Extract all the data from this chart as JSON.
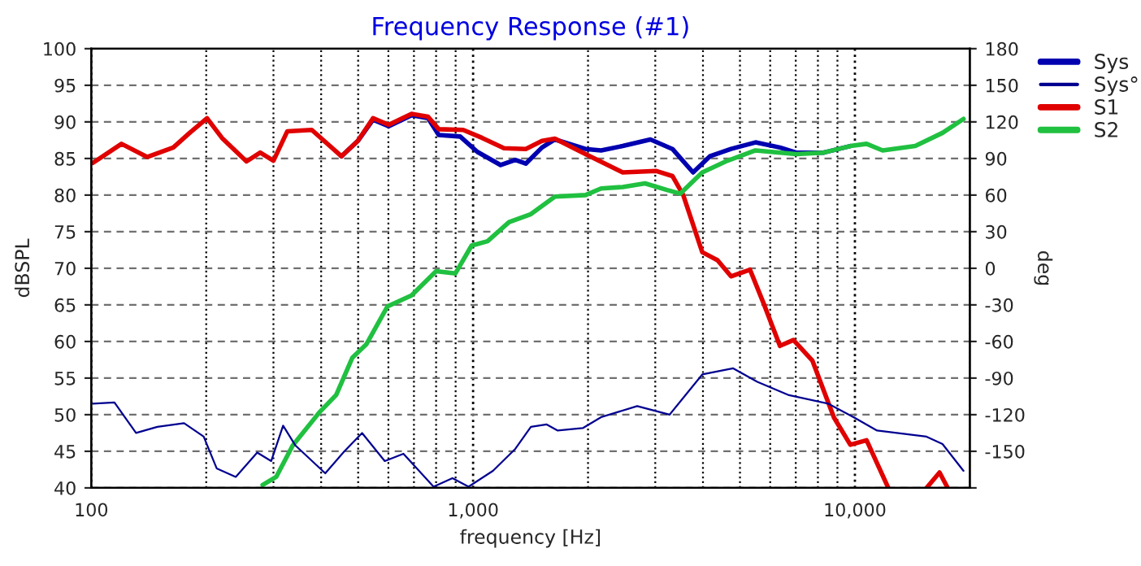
{
  "chart_data": {
    "type": "line",
    "title": "Frequency Response (#1)",
    "xlabel": "frequency [Hz]",
    "ylabel": "dBSPL",
    "y2label": "deg",
    "log": "x",
    "grid": true,
    "legend": "top right",
    "xlim": [
      100,
      20000
    ],
    "xticks": [
      100,
      {
        "value": 1000,
        "label": "1,000"
      },
      {
        "value": 10000,
        "label": "10,000"
      }
    ],
    "ylim": [
      40,
      100
    ],
    "yticks": [
      40,
      45,
      50,
      55,
      60,
      65,
      70,
      75,
      80,
      85,
      90,
      95,
      100
    ],
    "y2lim": [
      -180,
      180
    ],
    "y2ticks": [
      {
        "value": -180,
        "label": null
      },
      -150,
      -120,
      -90,
      -60,
      -30,
      0,
      30,
      60,
      90,
      120,
      150,
      180
    ],
    "series": [
      {
        "name": "Sys",
        "color": "#0000b0",
        "x": [
          452,
          499,
          547,
          601,
          690,
          762,
          813,
          925,
          1026,
          1181,
          1290,
          1374,
          1515,
          1638,
          1970,
          2164,
          2465,
          2914,
          3327,
          3768,
          4170,
          4737,
          5490,
          6362,
          7018,
          8270,
          9728
        ],
        "values": [
          85.3,
          87.4,
          90.3,
          89.4,
          90.9,
          90.5,
          88.2,
          88.0,
          85.9,
          84.1,
          84.8,
          84.3,
          86.5,
          87.6,
          86.3,
          86.1,
          86.7,
          87.6,
          86.3,
          83.1,
          85.3,
          86.3,
          87.2,
          86.5,
          85.8,
          85.8,
          86.7
        ]
      },
      {
        "name": "Sys°",
        "color": "#000090",
        "axis": "y2",
        "x": [
          101,
          115,
          131,
          149,
          175,
          197,
          213,
          239,
          272,
          296,
          318,
          342,
          410,
          460,
          512,
          587,
          657,
          788,
          883,
          973,
          1127,
          1290,
          1417,
          1559,
          1666,
          1937,
          2164,
          2690,
          3270,
          3983,
          4800,
          5550,
          6720,
          8520,
          10050,
          11430,
          15400,
          16960,
          19250
        ],
        "values": [
          -111,
          -110,
          -135,
          -130,
          -127,
          -138,
          -164,
          -171,
          -151,
          -158,
          -129,
          -145,
          -168,
          -150,
          -135,
          -158,
          -152,
          -179,
          -172,
          -179,
          -166,
          -148,
          -130,
          -128,
          -133,
          -131,
          -122,
          -113,
          -120,
          -87,
          -82,
          -93,
          -104,
          -111,
          -123,
          -133,
          -138,
          -144,
          -166
        ]
      },
      {
        "name": "S1",
        "color": "#e00000",
        "x": [
          101,
          120,
          140,
          164,
          181,
          201,
          220,
          255,
          277,
          300,
          326,
          378,
          452,
          499,
          547,
          601,
          690,
          762,
          813,
          942,
          1057,
          1205,
          1374,
          1515,
          1638,
          1970,
          2465,
          3012,
          3327,
          3551,
          3983,
          4367,
          4737,
          5313,
          5767,
          6362,
          6903,
          7735,
          8815,
          9728,
          10730,
          12230,
          13500,
          15400,
          16660,
          17500
        ],
        "values": [
          84.4,
          87.0,
          85.2,
          86.5,
          88.5,
          90.5,
          87.8,
          84.6,
          85.8,
          84.7,
          88.7,
          88.9,
          85.3,
          87.4,
          90.5,
          89.6,
          91.1,
          90.7,
          89.0,
          88.9,
          87.8,
          86.4,
          86.3,
          87.4,
          87.7,
          85.6,
          83.1,
          83.3,
          82.6,
          80.0,
          72.2,
          71.1,
          68.9,
          69.8,
          65.2,
          59.4,
          60.2,
          57.4,
          49.6,
          45.9,
          46.5,
          40.0,
          null,
          40.0,
          42.1,
          40.0
        ]
      },
      {
        "name": "S2",
        "color": "#20c040",
        "x": [
          281,
          305,
          337,
          397,
          438,
          483,
          525,
          597,
          690,
          800,
          899,
          991,
          1091,
          1242,
          1417,
          1638,
          1970,
          2164,
          2465,
          2820,
          3220,
          3490,
          3983,
          4590,
          5490,
          7018,
          8270,
          9728,
          10730,
          11820,
          14390,
          16960,
          19250
        ],
        "values": [
          40.4,
          41.5,
          45.8,
          50.4,
          52.7,
          57.8,
          59.6,
          64.8,
          66.3,
          69.6,
          69.3,
          73.1,
          73.7,
          76.3,
          77.4,
          79.8,
          80.0,
          80.9,
          81.1,
          81.6,
          80.7,
          80.2,
          83.1,
          84.6,
          86.1,
          85.6,
          85.8,
          86.7,
          87.0,
          86.1,
          86.7,
          88.5,
          90.4
        ]
      }
    ]
  }
}
